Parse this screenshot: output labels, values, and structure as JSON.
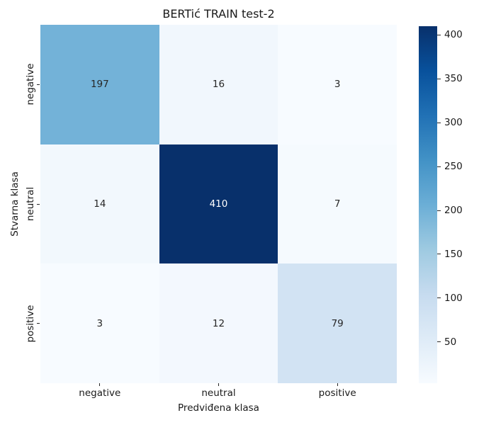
{
  "chart_data": {
    "type": "heatmap",
    "title": "BERTić TRAIN test-2",
    "xlabel": "Predviđena klasa",
    "ylabel": "Stvarna klasa",
    "x_categories": [
      "negative",
      "neutral",
      "positive"
    ],
    "y_categories": [
      "negative",
      "neutral",
      "positive"
    ],
    "matrix": [
      [
        197,
        16,
        3
      ],
      [
        14,
        410,
        7
      ],
      [
        3,
        12,
        79
      ]
    ],
    "cell_colors": [
      [
        "#73b2d8",
        "#f1f7fd",
        "#f7fbff"
      ],
      [
        "#f2f8fd",
        "#08306b",
        "#f5fafe"
      ],
      [
        "#f7fbff",
        "#f3f8fe",
        "#d2e3f3"
      ]
    ],
    "annotation_dark_color": "#262626",
    "annotation_light_color": "#ffffff",
    "colormap": "Blues",
    "vmin": 3,
    "vmax": 410,
    "grid": "off",
    "legend": "colorbar-right",
    "colorbar": {
      "ticks": [
        50,
        100,
        150,
        200,
        250,
        300,
        350,
        400
      ],
      "gradient_top_to_bottom": [
        "#08306b",
        "#08519c",
        "#2171b5",
        "#4292c6",
        "#6baed6",
        "#9ecae1",
        "#c6dbef",
        "#deebf7",
        "#f7fbff"
      ]
    }
  }
}
